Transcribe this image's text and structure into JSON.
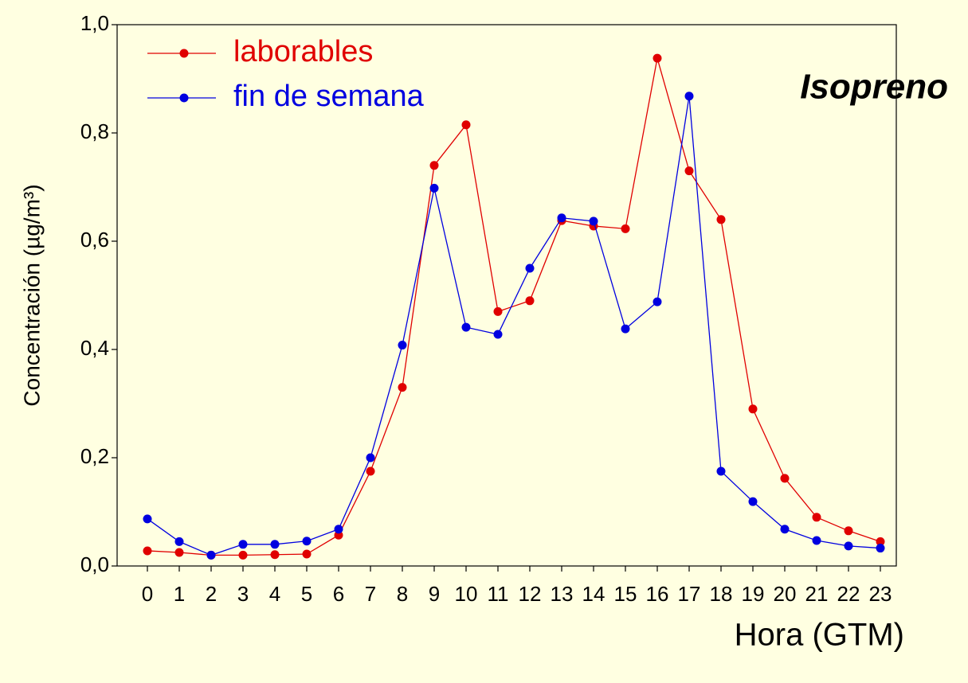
{
  "chart_data": {
    "type": "line",
    "title": "Isopreno",
    "x_label": "Hora (GTM)",
    "y_label": "Concentración (µg/m³)",
    "categories": [
      "0",
      "1",
      "2",
      "3",
      "4",
      "5",
      "6",
      "7",
      "8",
      "9",
      "10",
      "11",
      "12",
      "13",
      "14",
      "15",
      "16",
      "17",
      "18",
      "19",
      "20",
      "21",
      "22",
      "23"
    ],
    "series": [
      {
        "name": "laborables",
        "color": "#e00000",
        "values": [
          0.028,
          0.025,
          0.02,
          0.02,
          0.021,
          0.022,
          0.057,
          0.175,
          0.33,
          0.74,
          0.815,
          0.47,
          0.49,
          0.638,
          0.628,
          0.623,
          0.938,
          0.73,
          0.64,
          0.29,
          0.162,
          0.09,
          0.065,
          0.045
        ]
      },
      {
        "name": "fin de semana",
        "color": "#0000e0",
        "values": [
          0.087,
          0.045,
          0.02,
          0.04,
          0.04,
          0.046,
          0.068,
          0.2,
          0.408,
          0.698,
          0.441,
          0.428,
          0.55,
          0.643,
          0.637,
          0.438,
          0.488,
          0.868,
          0.175,
          0.119,
          0.068,
          0.047,
          0.037,
          0.033
        ]
      }
    ],
    "ylim": [
      0,
      1
    ],
    "yticks": [
      {
        "value": 0,
        "label": "0,0"
      },
      {
        "value": 0.2,
        "label": "0,2"
      },
      {
        "value": 0.4,
        "label": "0,4"
      },
      {
        "value": 0.6,
        "label": "0,6"
      },
      {
        "value": 0.8,
        "label": "0,8"
      },
      {
        "value": 1,
        "label": "1,0"
      }
    ],
    "grid": false,
    "legend": "upper left"
  }
}
